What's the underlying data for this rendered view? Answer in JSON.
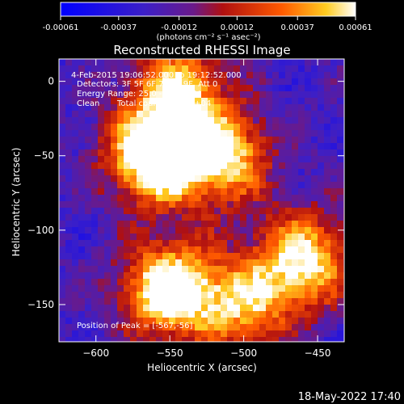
{
  "chart_data": {
    "type": "heatmap",
    "colorbar": {
      "ticks": [
        "-0.00061",
        "-0.00037",
        "-0.00012",
        "0.00012",
        "0.00037",
        "0.00061"
      ],
      "range": [
        -0.00061,
        0.00061
      ],
      "units": "(photons cm⁻² s⁻¹ asec⁻²)"
    },
    "title": "Reconstructed RHESSI Image",
    "annotations": {
      "time": "4-Feb-2015 19:06:52.000 to 19:12:52.000",
      "detectors": "Detectors: 3F 5F 6F 7F 8F 9F, Att 0",
      "energy": "Energy Range: 25.0 - 50.0 keV",
      "clean_label": "Clean",
      "counts": "Total counts: 1.59E+04",
      "peak": "Position of Peak = [-567,-56]"
    },
    "xlabel": "Heliocentric X (arcsec)",
    "ylabel": "Heliocentric Y (arcsec)",
    "xlim": [
      -625,
      -432
    ],
    "ylim": [
      -175,
      15
    ],
    "xticks": [
      -600,
      -550,
      -500,
      -450
    ],
    "yticks": [
      0,
      -50,
      -100,
      -150
    ],
    "peak_position": [
      -567,
      -56
    ],
    "sources": [
      {
        "x": -560,
        "y": -50,
        "level": 0.95
      },
      {
        "x": -515,
        "y": -50,
        "level": 0.7
      },
      {
        "x": -545,
        "y": -5,
        "level": 0.6
      },
      {
        "x": -550,
        "y": -140,
        "level": 0.85
      },
      {
        "x": -460,
        "y": -120,
        "level": 0.7
      },
      {
        "x": -500,
        "y": -150,
        "level": 0.55
      }
    ]
  },
  "footer": {
    "timestamp": "18-May-2022 17:40"
  }
}
